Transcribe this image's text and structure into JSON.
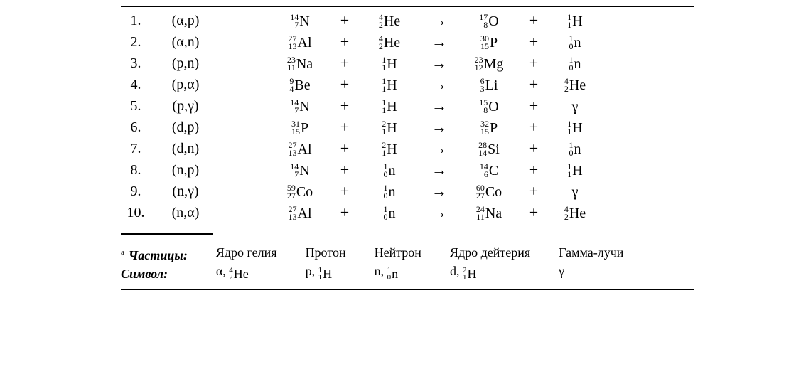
{
  "style": {
    "font_family": "Times New Roman",
    "base_fontsize_pt": 15,
    "small_fontsize_pt": 9,
    "text_color": "#000000",
    "background_color": "#ffffff",
    "rule_color": "#000000"
  },
  "symbols": {
    "plus": "+",
    "arrow": "→"
  },
  "reactions": [
    {
      "n": "1.",
      "code": "(α,p)",
      "lhs1": {
        "A": "14",
        "Z": "7",
        "el": "N"
      },
      "lhs2": {
        "A": "4",
        "Z": "2",
        "el": "He"
      },
      "rhs1": {
        "A": "17",
        "Z": "8",
        "el": "O"
      },
      "rhs2": {
        "A": "1",
        "Z": "1",
        "el": "H"
      }
    },
    {
      "n": "2.",
      "code": "(α,n)",
      "lhs1": {
        "A": "27",
        "Z": "13",
        "el": "Al"
      },
      "lhs2": {
        "A": "4",
        "Z": "2",
        "el": "He"
      },
      "rhs1": {
        "A": "30",
        "Z": "15",
        "el": "P"
      },
      "rhs2": {
        "A": "1",
        "Z": "0",
        "el": "n"
      }
    },
    {
      "n": "3.",
      "code": "(p,n)",
      "lhs1": {
        "A": "23",
        "Z": "11",
        "el": "Na"
      },
      "lhs2": {
        "A": "1",
        "Z": "1",
        "el": "H"
      },
      "rhs1": {
        "A": "23",
        "Z": "12",
        "el": "Mg"
      },
      "rhs2": {
        "A": "1",
        "Z": "0",
        "el": "n"
      }
    },
    {
      "n": "4.",
      "code": "(p,α)",
      "lhs1": {
        "A": "9",
        "Z": "4",
        "el": "Be"
      },
      "lhs2": {
        "A": "1",
        "Z": "1",
        "el": "H"
      },
      "rhs1": {
        "A": "6",
        "Z": "3",
        "el": "Li"
      },
      "rhs2": {
        "A": "4",
        "Z": "2",
        "el": "He"
      }
    },
    {
      "n": "5.",
      "code": "(p,γ)",
      "lhs1": {
        "A": "14",
        "Z": "7",
        "el": "N"
      },
      "lhs2": {
        "A": "1",
        "Z": "1",
        "el": "H"
      },
      "rhs1": {
        "A": "15",
        "Z": "8",
        "el": "O"
      },
      "rhs2": {
        "plain": "γ"
      }
    },
    {
      "n": "6.",
      "code": "(d,p)",
      "lhs1": {
        "A": "31",
        "Z": "15",
        "el": "P"
      },
      "lhs2": {
        "A": "2",
        "Z": "1",
        "el": "H"
      },
      "rhs1": {
        "A": "32",
        "Z": "15",
        "el": "P"
      },
      "rhs2": {
        "A": "1",
        "Z": "1",
        "el": "H"
      }
    },
    {
      "n": "7.",
      "code": "(d,n)",
      "lhs1": {
        "A": "27",
        "Z": "13",
        "el": "Al"
      },
      "lhs2": {
        "A": "2",
        "Z": "1",
        "el": "H"
      },
      "rhs1": {
        "A": "28",
        "Z": "14",
        "el": "Si"
      },
      "rhs2": {
        "A": "1",
        "Z": "0",
        "el": "n"
      }
    },
    {
      "n": "8.",
      "code": "(n,p)",
      "lhs1": {
        "A": "14",
        "Z": "7",
        "el": "N"
      },
      "lhs2": {
        "A": "1",
        "Z": "0",
        "el": "n"
      },
      "rhs1": {
        "A": "14",
        "Z": "6",
        "el": "C"
      },
      "rhs2": {
        "A": "1",
        "Z": "1",
        "el": "H"
      }
    },
    {
      "n": "9.",
      "code": "(n,γ)",
      "lhs1": {
        "A": "59",
        "Z": "27",
        "el": "Co"
      },
      "lhs2": {
        "A": "1",
        "Z": "0",
        "el": "n"
      },
      "rhs1": {
        "A": "60",
        "Z": "27",
        "el": "Co"
      },
      "rhs2": {
        "plain": "γ"
      }
    },
    {
      "n": "10.",
      "code": "(n,α)",
      "lhs1": {
        "A": "27",
        "Z": "13",
        "el": "Al"
      },
      "lhs2": {
        "A": "1",
        "Z": "0",
        "el": "n"
      },
      "rhs1": {
        "A": "24",
        "Z": "11",
        "el": "Na"
      },
      "rhs2": {
        "A": "4",
        "Z": "2",
        "el": "He"
      }
    }
  ],
  "legend": {
    "row_labels": [
      "Частицы:",
      "Символ:"
    ],
    "cols": [
      {
        "name": "Ядро гелия",
        "sym_prefix": "α, ",
        "nuc": {
          "A": "4",
          "Z": "2",
          "el": "He"
        }
      },
      {
        "name": "Протон",
        "sym_prefix": "p, ",
        "nuc": {
          "A": "1",
          "Z": "1",
          "el": "H"
        }
      },
      {
        "name": "Нейтрон",
        "sym_prefix": "n, ",
        "nuc": {
          "A": "1",
          "Z": "0",
          "el": "n"
        }
      },
      {
        "name": "Ядро дейтерия",
        "sym_prefix": "d, ",
        "nuc": {
          "A": "2",
          "Z": "1",
          "el": "H"
        }
      },
      {
        "name": "Гамма-лучи",
        "sym_plain": "γ"
      }
    ]
  }
}
